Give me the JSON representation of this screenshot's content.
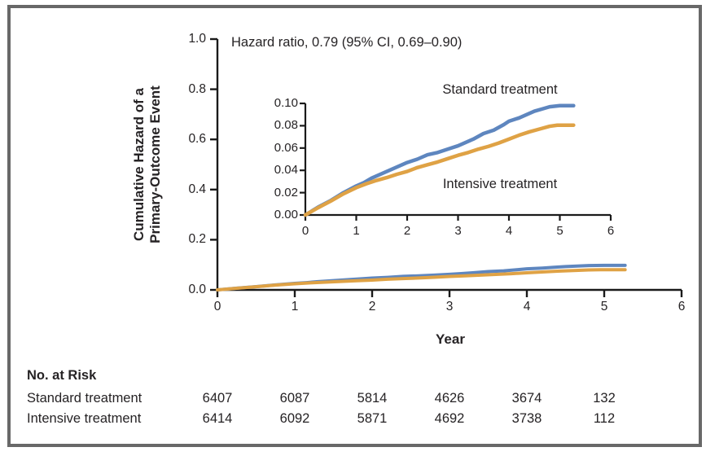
{
  "annotation": {
    "hazard_ratio": "Hazard ratio, 0.79 (95% CI, 0.69–0.90)"
  },
  "axes": {
    "y_label_line1": "Cumulative Hazard of a",
    "y_label_line2": "Primary-Outcome Event",
    "x_label": "Year"
  },
  "series_labels": {
    "standard": "Standard treatment",
    "intensive": "Intensive treatment"
  },
  "colors": {
    "standard_line": "#5e86bf",
    "intensive_line": "#dfa245",
    "axis": "#1a1a1a",
    "text": "#262325",
    "border": "#686868"
  },
  "chart_data": {
    "type": "line",
    "title": "",
    "xlabel": "Year",
    "ylabel": "Cumulative Hazard of a Primary-Outcome Event",
    "annotation": "Hazard ratio, 0.79 (95% CI, 0.69–0.90)",
    "legend_position": "inline-labels",
    "grid": false,
    "main_axis": {
      "xlim": [
        0,
        6
      ],
      "ylim": [
        0,
        1.0
      ],
      "x_tick_labels": [
        "0",
        "1",
        "2",
        "3",
        "4",
        "5",
        "6"
      ],
      "y_tick_labels": [
        "0.0",
        "0.2",
        "0.4",
        "0.6",
        "0.8",
        "1.0"
      ]
    },
    "inset_axis": {
      "xlim": [
        0,
        6
      ],
      "ylim": [
        0,
        0.1
      ],
      "x_tick_labels": [
        "0",
        "1",
        "2",
        "3",
        "4",
        "5",
        "6"
      ],
      "y_tick_labels": [
        "0.00",
        "0.02",
        "0.04",
        "0.06",
        "0.08",
        "0.10"
      ]
    },
    "series": [
      {
        "name": "Standard treatment",
        "color": "#5e86bf",
        "points": [
          [
            0,
            0
          ],
          [
            0.25,
            0.007
          ],
          [
            0.5,
            0.013
          ],
          [
            0.75,
            0.02
          ],
          [
            1,
            0.026
          ],
          [
            1.15,
            0.029
          ],
          [
            1.3,
            0.033
          ],
          [
            1.5,
            0.037
          ],
          [
            1.7,
            0.041
          ],
          [
            1.9,
            0.045
          ],
          [
            2,
            0.047
          ],
          [
            2.2,
            0.05
          ],
          [
            2.4,
            0.054
          ],
          [
            2.6,
            0.056
          ],
          [
            2.8,
            0.059
          ],
          [
            3,
            0.062
          ],
          [
            3.15,
            0.065
          ],
          [
            3.3,
            0.068
          ],
          [
            3.5,
            0.073
          ],
          [
            3.7,
            0.076
          ],
          [
            3.9,
            0.081
          ],
          [
            4,
            0.084
          ],
          [
            4.2,
            0.087
          ],
          [
            4.35,
            0.09
          ],
          [
            4.5,
            0.093
          ],
          [
            4.65,
            0.095
          ],
          [
            4.8,
            0.097
          ],
          [
            5,
            0.098
          ],
          [
            5.27,
            0.098
          ]
        ]
      },
      {
        "name": "Intensive treatment",
        "color": "#dfa245",
        "points": [
          [
            0,
            0
          ],
          [
            0.25,
            0.0065
          ],
          [
            0.5,
            0.0125
          ],
          [
            0.75,
            0.019
          ],
          [
            1,
            0.0245
          ],
          [
            1.2,
            0.028
          ],
          [
            1.4,
            0.031
          ],
          [
            1.6,
            0.0335
          ],
          [
            1.8,
            0.0365
          ],
          [
            2,
            0.039
          ],
          [
            2.2,
            0.0425
          ],
          [
            2.4,
            0.045
          ],
          [
            2.6,
            0.0475
          ],
          [
            2.8,
            0.0505
          ],
          [
            3,
            0.0535
          ],
          [
            3.2,
            0.056
          ],
          [
            3.4,
            0.059
          ],
          [
            3.6,
            0.0615
          ],
          [
            3.8,
            0.0645
          ],
          [
            4,
            0.068
          ],
          [
            4.2,
            0.0715
          ],
          [
            4.4,
            0.0745
          ],
          [
            4.6,
            0.077
          ],
          [
            4.8,
            0.0795
          ],
          [
            4.95,
            0.0805
          ],
          [
            5.27,
            0.0805
          ]
        ]
      }
    ]
  },
  "risk_table": {
    "title": "No. at Risk",
    "time_points": [
      0,
      1,
      2,
      3,
      4,
      5
    ],
    "rows": [
      {
        "label": "Standard treatment",
        "values": [
          "6407",
          "6087",
          "5814",
          "4626",
          "3674",
          "132"
        ]
      },
      {
        "label": "Intensive treatment",
        "values": [
          "6414",
          "6092",
          "5871",
          "4692",
          "3738",
          "112"
        ]
      }
    ]
  }
}
